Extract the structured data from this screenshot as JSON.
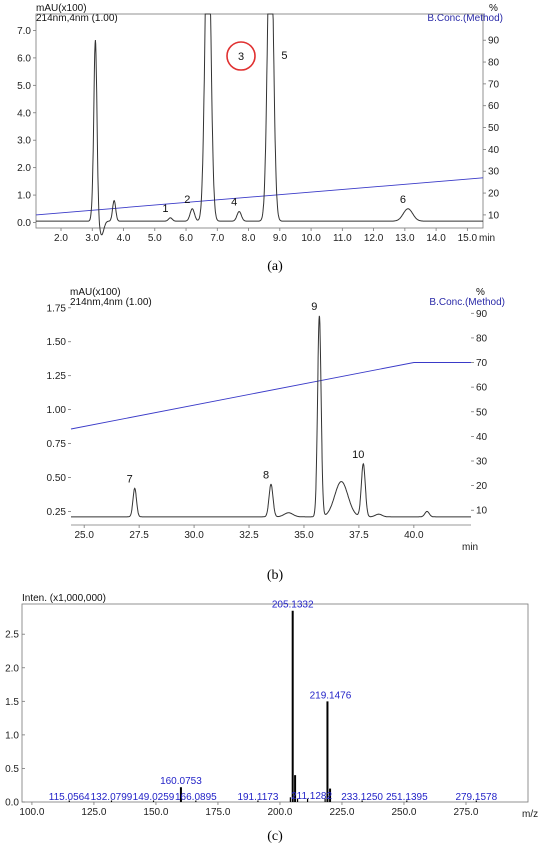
{
  "chart_data": [
    {
      "id": "a",
      "type": "line",
      "caption": "(a)",
      "left_unit": "mAU(x100)",
      "channel": "214nm,4nm (1.00)",
      "right_unit": "%",
      "right_label": "B.Conc.(Method)",
      "x_unit": "min",
      "xlim": [
        1.2,
        15.5
      ],
      "ylim": [
        -0.2,
        7.6
      ],
      "y2lim": [
        4,
        102
      ],
      "x_ticks": [
        "2.0",
        "3.0",
        "4.0",
        "5.0",
        "6.0",
        "7.0",
        "8.0",
        "9.0",
        "10.0",
        "11.0",
        "12.0",
        "13.0",
        "14.0",
        "15.0"
      ],
      "y_ticks": [
        "0.0",
        "1.0",
        "2.0",
        "3.0",
        "4.0",
        "5.0",
        "6.0",
        "7.0"
      ],
      "y2_ticks": [
        "10",
        "20",
        "30",
        "40",
        "50",
        "60",
        "70",
        "80",
        "90"
      ],
      "baseline": 0.05,
      "peaks": [
        {
          "label": "",
          "t": 3.1,
          "h": 6.6,
          "w": 0.05
        },
        {
          "label": "",
          "t": 3.0,
          "h": 0.25,
          "w": 0.04
        },
        {
          "label": "",
          "t": 3.3,
          "h": -0.5,
          "w": 0.07
        },
        {
          "label": "",
          "t": 3.7,
          "h": 0.75,
          "w": 0.05
        },
        {
          "label": "1",
          "t": 5.5,
          "h": 0.12,
          "w": 0.06
        },
        {
          "label": "2",
          "t": 6.2,
          "h": 0.45,
          "w": 0.07
        },
        {
          "label": "3",
          "t": 6.7,
          "h": 12.0,
          "w": 0.09
        },
        {
          "label": "4",
          "t": 7.7,
          "h": 0.35,
          "w": 0.07
        },
        {
          "label": "5",
          "t": 8.7,
          "h": 12.0,
          "w": 0.09
        },
        {
          "label": "6",
          "t": 13.1,
          "h": 0.45,
          "w": 0.15
        }
      ],
      "conc_line": {
        "x": [
          1.2,
          15.5
        ],
        "y": [
          10,
          27
        ]
      },
      "circled_label": "3"
    },
    {
      "id": "b",
      "type": "line",
      "caption": "(b)",
      "left_unit": "mAU(x100)",
      "channel": "214nm,4nm (1.00)",
      "right_unit": "%",
      "right_label": "B.Conc.(Method)",
      "x_unit": "min",
      "xlim": [
        24.4,
        42.6
      ],
      "ylim": [
        0.15,
        1.8
      ],
      "y2lim": [
        4,
        95
      ],
      "x_ticks": [
        "25.0",
        "27.5",
        "30.0",
        "32.5",
        "35.0",
        "37.5",
        "40.0"
      ],
      "y_ticks": [
        "0.25",
        "0.50",
        "0.75",
        "1.00",
        "1.25",
        "1.50",
        "1.75"
      ],
      "y2_ticks": [
        "10",
        "20",
        "30",
        "40",
        "50",
        "60",
        "70",
        "80",
        "90"
      ],
      "baseline": 0.21,
      "peaks": [
        {
          "label": "7",
          "t": 27.3,
          "h": 0.21,
          "w": 0.08
        },
        {
          "label": "8",
          "t": 33.5,
          "h": 0.24,
          "w": 0.09
        },
        {
          "label": "",
          "t": 34.3,
          "h": 0.03,
          "w": 0.2
        },
        {
          "label": "9",
          "t": 35.7,
          "h": 1.48,
          "w": 0.08
        },
        {
          "label": "",
          "t": 36.7,
          "h": 0.26,
          "w": 0.3
        },
        {
          "label": "10",
          "t": 37.7,
          "h": 0.39,
          "w": 0.09
        },
        {
          "label": "",
          "t": 38.4,
          "h": 0.02,
          "w": 0.15
        },
        {
          "label": "",
          "t": 40.6,
          "h": 0.04,
          "w": 0.1
        }
      ],
      "conc_line": {
        "x": [
          24.4,
          40.0,
          42.6
        ],
        "y": [
          43,
          70,
          70
        ]
      }
    },
    {
      "id": "c",
      "type": "bar",
      "caption": "(c)",
      "y_unit": "Inten. (x1,000,000)",
      "x_unit": "m/z",
      "xlim": [
        96,
        300
      ],
      "ylim": [
        0,
        2.95
      ],
      "x_ticks": [
        "100.0",
        "125.0",
        "150.0",
        "175.0",
        "200.0",
        "225.0",
        "250.0",
        "275.0"
      ],
      "y_ticks": [
        "0.0",
        "0.5",
        "1.0",
        "1.5",
        "2.0",
        "2.5"
      ],
      "ions": [
        {
          "mz": 115.0564,
          "i": 0.01,
          "label": "115.0564"
        },
        {
          "mz": 132.0799,
          "i": 0.01,
          "label": "132.0799"
        },
        {
          "mz": 149.0259,
          "i": 0.01,
          "label": "149.0259"
        },
        {
          "mz": 160.0753,
          "i": 0.22,
          "label": "160.0753"
        },
        {
          "mz": 166.0895,
          "i": 0.01,
          "label": "166.0895"
        },
        {
          "mz": 191.1173,
          "i": 0.01,
          "label": "191.1173"
        },
        {
          "mz": 204.2,
          "i": 0.07,
          "label": ""
        },
        {
          "mz": 205.1332,
          "i": 2.85,
          "label": "205.1332"
        },
        {
          "mz": 206.1,
          "i": 0.4,
          "label": ""
        },
        {
          "mz": 207.1,
          "i": 0.05,
          "label": ""
        },
        {
          "mz": 211.1282,
          "i": 0.05,
          "label": "211.1282"
        },
        {
          "mz": 218.2,
          "i": 0.05,
          "label": ""
        },
        {
          "mz": 219.1476,
          "i": 1.5,
          "label": "219.1476"
        },
        {
          "mz": 220.2,
          "i": 0.2,
          "label": ""
        },
        {
          "mz": 233.125,
          "i": 0.01,
          "label": "233.1250"
        },
        {
          "mz": 251.1395,
          "i": 0.01,
          "label": "251.1395"
        },
        {
          "mz": 279.1578,
          "i": 0.01,
          "label": "279.1578"
        }
      ]
    }
  ]
}
